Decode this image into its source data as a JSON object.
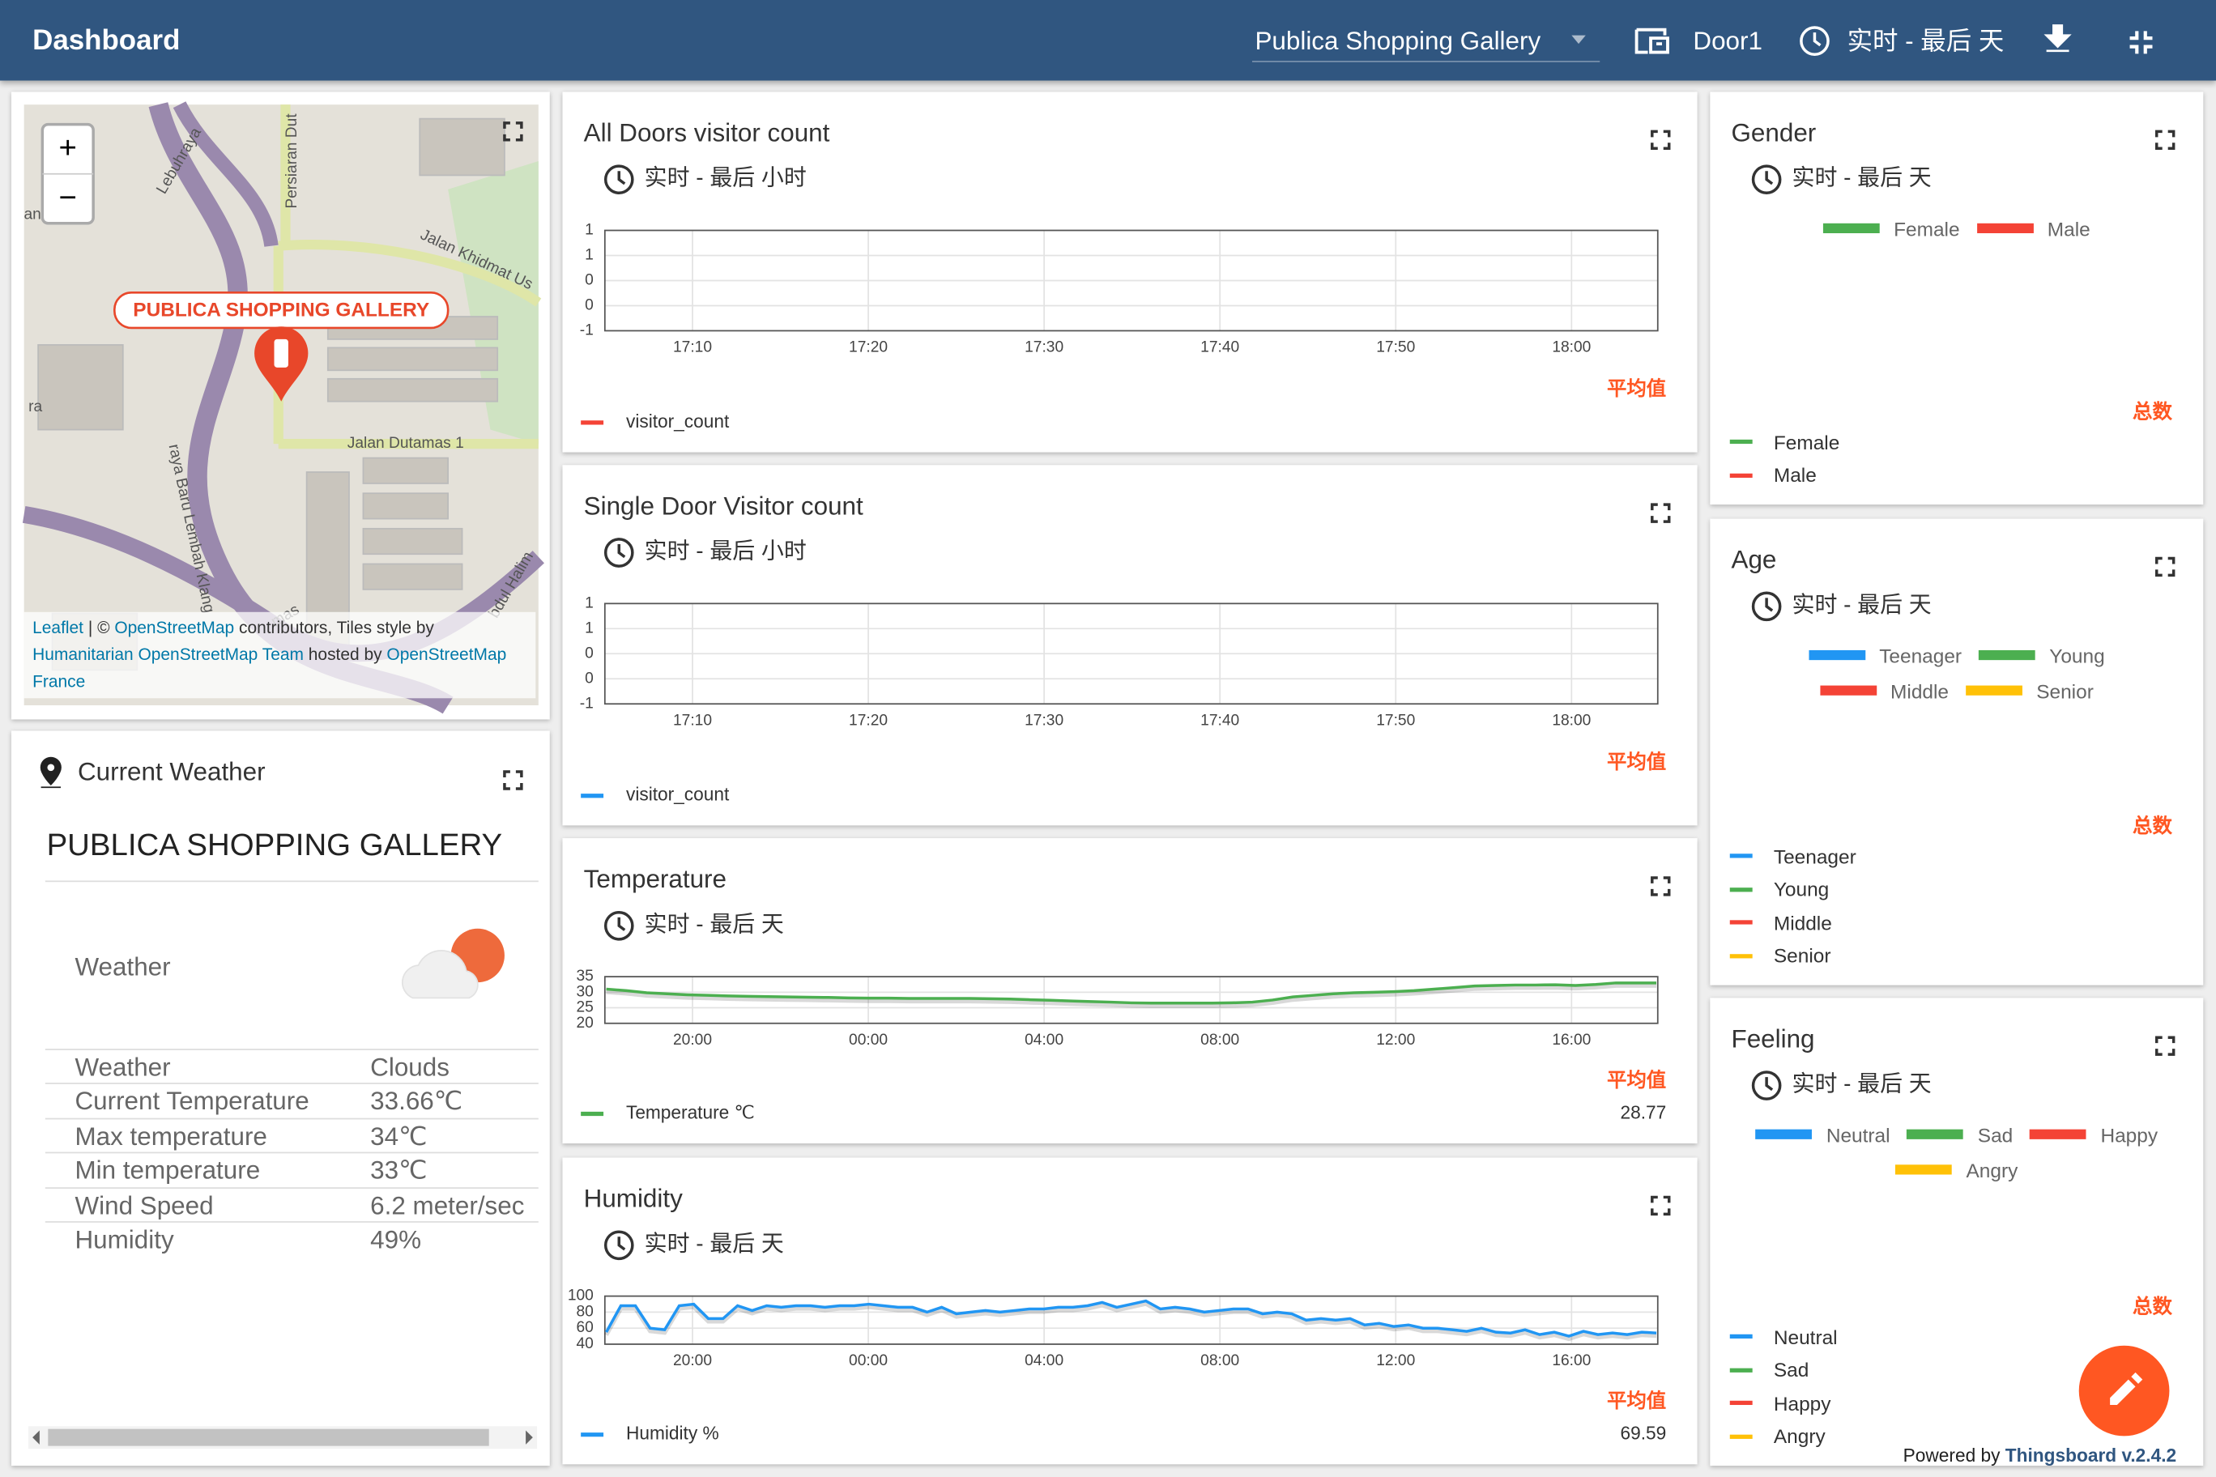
{
  "header": {
    "title": "Dashboard",
    "entity": "Publica Shopping Gallery",
    "device": "Door1",
    "timewindow": "实时 - 最后 天"
  },
  "map": {
    "place_label": "PUBLICA SHOPPING GALLERY",
    "zoom_in": "+",
    "zoom_out": "−",
    "streets": [
      "Lebuhraya",
      "Persiaran Dut",
      "Jalan Khidmat Us",
      "Jalan Dutamas 1",
      "raya Baru Lembah Klang",
      "bdul Halim",
      "an",
      "ra",
      "mas"
    ],
    "attribution": [
      {
        "text": "Leaflet",
        "link": true
      },
      {
        "text": " | © ",
        "link": false
      },
      {
        "text": "OpenStreetMap",
        "link": true
      },
      {
        "text": " contributors, Tiles style by ",
        "link": false
      },
      {
        "text": "Humanitarian OpenStreetMap Team",
        "link": true
      },
      {
        "text": " hosted by ",
        "link": false
      },
      {
        "text": "OpenStreetMap France",
        "link": true
      }
    ]
  },
  "weather": {
    "title": "Current Weather",
    "place": "PUBLICA SHOPPING GALLERY",
    "icon_label": "Weather",
    "rows": [
      [
        "Weather",
        "Clouds"
      ],
      [
        "Current Temperature",
        "33.66℃"
      ],
      [
        "Max temperature",
        "34℃"
      ],
      [
        "Min temperature",
        "33℃"
      ],
      [
        "Wind Speed",
        "6.2 meter/sec"
      ],
      [
        "Humidity",
        "49%"
      ]
    ]
  },
  "charts": [
    {
      "type": "line",
      "title": "All Doors visitor count",
      "timewindow": "实时 - 最后 小时",
      "ylim": [
        -1,
        1
      ],
      "yticks": [
        1,
        {
          "value": 0.5,
          "label": "1"
        },
        0,
        {
          "value": -0.5,
          "label": "0"
        },
        -1
      ],
      "xticks": [
        "17:10",
        "17:20",
        "17:30",
        "17:40",
        "17:50",
        "18:00"
      ],
      "avg_header": "平均值",
      "series": {
        "name": "visitor_count",
        "color": "#f44336"
      }
    },
    {
      "type": "line",
      "title": "Single Door Visitor count",
      "timewindow": "实时 - 最后 小时",
      "ylim": [
        -1,
        1
      ],
      "yticks": [
        1,
        {
          "value": 0.5,
          "label": "1"
        },
        0,
        {
          "value": -0.5,
          "label": "0"
        },
        -1
      ],
      "xticks": [
        "17:10",
        "17:20",
        "17:30",
        "17:40",
        "17:50",
        "18:00"
      ],
      "avg_header": "平均值",
      "series": {
        "name": "visitor_count",
        "color": "#2196f3"
      }
    },
    {
      "type": "line",
      "title": "Temperature",
      "timewindow": "实时 - 最后 天",
      "ylim": [
        20,
        35
      ],
      "yticks": [
        35,
        30,
        25,
        20
      ],
      "xticks": [
        "20:00",
        "00:00",
        "04:00",
        "08:00",
        "12:00",
        "16:00"
      ],
      "avg_header": "平均值",
      "series": {
        "name": "Temperature ℃",
        "color": "#4caf50",
        "avg": 28.77,
        "values": [
          31,
          30.5,
          29.8,
          29.5,
          29.2,
          29,
          28.8,
          28.7,
          28.6,
          28.5,
          28.4,
          28.3,
          28.2,
          28.1,
          28.1,
          28,
          28,
          28,
          28,
          27.9,
          27.8,
          27.6,
          27.4,
          27.2,
          27,
          26.8,
          26.6,
          26.5,
          26.5,
          26.5,
          26.5,
          26.6,
          26.8,
          27.5,
          28.5,
          29,
          29.5,
          29.8,
          30,
          30.2,
          30.5,
          31,
          31.5,
          32,
          32.2,
          32.3,
          32.3,
          32.4,
          32.2,
          32.5,
          33,
          33,
          33
        ]
      }
    },
    {
      "type": "line",
      "title": "Humidity",
      "timewindow": "实时 - 最后 天",
      "ylim": [
        40,
        100
      ],
      "yticks": [
        100,
        80,
        60,
        40
      ],
      "xticks": [
        "20:00",
        "00:00",
        "04:00",
        "08:00",
        "12:00",
        "16:00"
      ],
      "avg_header": "平均值",
      "series": {
        "name": "Humidity %",
        "color": "#2196f3",
        "avg": 69.59,
        "values": [
          55,
          88,
          88,
          60,
          58,
          88,
          90,
          72,
          72,
          88,
          82,
          88,
          86,
          88,
          88,
          86,
          88,
          88,
          90,
          88,
          86,
          86,
          80,
          86,
          78,
          80,
          82,
          80,
          82,
          84,
          84,
          86,
          86,
          88,
          92,
          86,
          90,
          94,
          84,
          86,
          84,
          80,
          82,
          84,
          84,
          78,
          80,
          78,
          70,
          72,
          70,
          72,
          64,
          66,
          62,
          64,
          60,
          60,
          58,
          56,
          60,
          55,
          54,
          58,
          52,
          55,
          50,
          56,
          52,
          54,
          52,
          55,
          54
        ]
      }
    }
  ],
  "pies": [
    {
      "type": "pie",
      "title": "Gender",
      "timewindow": "实时 - 最后 天",
      "total_header": "总数",
      "series": [
        {
          "name": "Female",
          "color": "#4caf50"
        },
        {
          "name": "Male",
          "color": "#f44336"
        }
      ]
    },
    {
      "type": "pie",
      "title": "Age",
      "timewindow": "实时 - 最后 天",
      "total_header": "总数",
      "series": [
        {
          "name": "Teenager",
          "color": "#2196f3"
        },
        {
          "name": "Young",
          "color": "#4caf50"
        },
        {
          "name": "Middle",
          "color": "#f44336"
        },
        {
          "name": "Senior",
          "color": "#ffc107"
        }
      ]
    },
    {
      "type": "pie",
      "title": "Feeling",
      "timewindow": "实时 - 最后 天",
      "total_header": "总数",
      "series": [
        {
          "name": "Neutral",
          "color": "#2196f3"
        },
        {
          "name": "Sad",
          "color": "#4caf50"
        },
        {
          "name": "Happy",
          "color": "#f44336"
        },
        {
          "name": "Angry",
          "color": "#ffc107"
        }
      ]
    }
  ],
  "footer": {
    "powered_by": "Powered by",
    "version": "Thingsboard v.2.4.2"
  }
}
